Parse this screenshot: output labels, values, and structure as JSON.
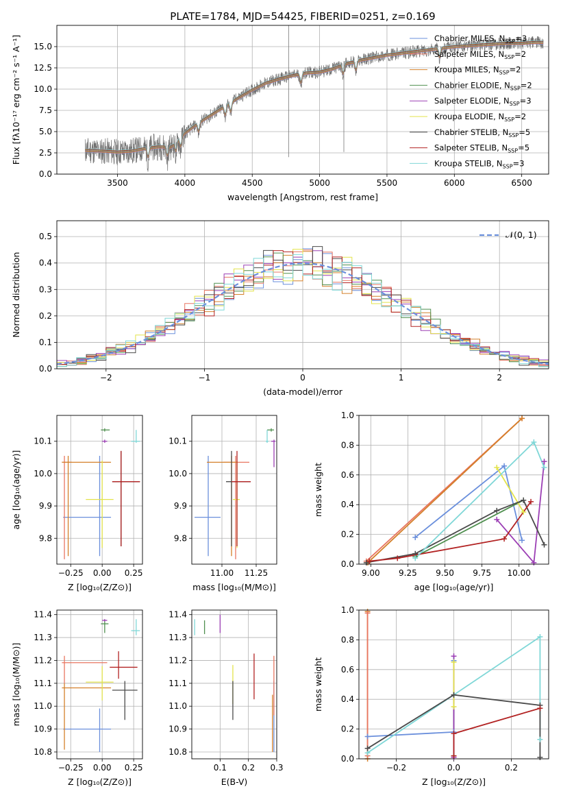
{
  "chart_data": [
    {
      "id": "spectrum",
      "type": "line",
      "title": "PLATE=1784, MJD=54425, FIBERID=0251, z=0.169",
      "xlabel": "wavelength [Angstrom, rest frame]",
      "ylabel": "Flux [fλ10⁻¹⁷ erg cm⁻² s⁻¹ A⁻¹]",
      "xlim": [
        3050,
        6700
      ],
      "ylim": [
        0,
        17.5
      ],
      "xticks": [
        3500,
        4000,
        4500,
        5000,
        5500,
        6000,
        6500
      ],
      "yticks": [
        0.0,
        2.5,
        5.0,
        7.5,
        10.0,
        12.5,
        15.0
      ],
      "data_x_range": [
        3260,
        6660
      ],
      "continuum": {
        "x": [
          3260,
          3400,
          3500,
          3600,
          3700,
          3800,
          3900,
          4000,
          4100,
          4200,
          4300,
          4400,
          4500,
          4600,
          4700,
          4800,
          4900,
          5000,
          5100,
          5200,
          5300,
          5400,
          5500,
          5600,
          5700,
          5800,
          5900,
          6000,
          6100,
          6200,
          6300,
          6400,
          6500,
          6600,
          6660
        ],
        "y": [
          2.8,
          2.7,
          2.6,
          2.7,
          3.0,
          3.2,
          3.2,
          4.8,
          6.0,
          7.0,
          8.0,
          9.0,
          9.9,
          10.7,
          11.2,
          11.6,
          11.9,
          12.0,
          12.4,
          13.0,
          13.4,
          13.7,
          14.0,
          14.2,
          14.4,
          14.6,
          14.8,
          15.0,
          15.1,
          15.2,
          15.3,
          15.4,
          15.4,
          15.5,
          15.5
        ]
      },
      "legend_position": "upper-right",
      "legend": [
        {
          "label": "Chabrier MILES, N",
          "sub": "SSP",
          "suffix": "=3",
          "color": "#6a8fdc"
        },
        {
          "label": "Salpeter MILES, N",
          "sub": "SSP",
          "suffix": "=2",
          "color": "#e87560"
        },
        {
          "label": "Kroupa MILES, N",
          "sub": "SSP",
          "suffix": "=2",
          "color": "#d4802a"
        },
        {
          "label": "Chabrier ELODIE, N",
          "sub": "SSP",
          "suffix": "=2",
          "color": "#4f8f4f"
        },
        {
          "label": "Salpeter ELODIE, N",
          "sub": "SSP",
          "suffix": "=3",
          "color": "#9b3eb4"
        },
        {
          "label": "Kroupa ELODIE, N",
          "sub": "SSP",
          "suffix": "=2",
          "color": "#e3e34a"
        },
        {
          "label": "Chabrier STELIB, N",
          "sub": "SSP",
          "suffix": "=5",
          "color": "#4a4a4a"
        },
        {
          "label": "Salpeter STELIB, N",
          "sub": "SSP",
          "suffix": "=5",
          "color": "#b22222"
        },
        {
          "label": "Kroupa STELIB, N",
          "sub": "SSP",
          "suffix": "=3",
          "color": "#7fd7d7"
        }
      ]
    },
    {
      "id": "residuals",
      "type": "histogram",
      "xlabel": "(data-model)/error",
      "ylabel": "Normed distribution",
      "xlim": [
        -2.5,
        2.5
      ],
      "ylim": [
        0,
        0.56
      ],
      "xticks": [
        -2,
        -1,
        0,
        1,
        2
      ],
      "yticks": [
        0.0,
        0.1,
        0.2,
        0.3,
        0.4,
        0.5
      ],
      "bin_width": 0.1,
      "grid": true,
      "legend_position": "upper-right",
      "legend": [
        {
          "label": "𝒩(0, 1)",
          "color": "#6a8fdc",
          "style": "dashed"
        }
      ],
      "series": [
        {
          "name": "Chabrier MILES",
          "color": "#6a8fdc",
          "seed": 1
        },
        {
          "name": "Salpeter MILES",
          "color": "#e87560",
          "seed": 2
        },
        {
          "name": "Kroupa MILES",
          "color": "#d4802a",
          "seed": 3
        },
        {
          "name": "Chabrier ELODIE",
          "color": "#4f8f4f",
          "seed": 4
        },
        {
          "name": "Salpeter ELODIE",
          "color": "#9b3eb4",
          "seed": 5
        },
        {
          "name": "Kroupa ELODIE",
          "color": "#e3e34a",
          "seed": 6
        },
        {
          "name": "Chabrier STELIB",
          "color": "#4a4a4a",
          "seed": 7
        },
        {
          "name": "Salpeter STELIB",
          "color": "#b22222",
          "seed": 8
        },
        {
          "name": "Kroupa STELIB",
          "color": "#7fd7d7",
          "seed": 9
        }
      ]
    },
    {
      "id": "age-vs-z",
      "type": "errorbar",
      "xlabel": "Z [log₁₀(Z/Z⊙)]",
      "ylabel": "age  [log₁₀(age/yr)]",
      "xlim": [
        -0.36,
        0.32
      ],
      "ylim": [
        9.72,
        10.18
      ],
      "xticks": [
        -0.25,
        0.0,
        0.25
      ],
      "yticks": [
        9.8,
        9.9,
        10.0,
        10.1
      ],
      "points": [
        {
          "color": "#6a8fdc",
          "x": -0.02,
          "y": 9.865,
          "xerr": [
            0.29,
            0.09
          ],
          "yerr": [
            0.12,
            0.19
          ]
        },
        {
          "color": "#e87560",
          "x": -0.3,
          "y": 10.035,
          "xerr": [
            0.02,
            0.06
          ],
          "yerr": [
            0.3,
            0.02
          ]
        },
        {
          "color": "#d4802a",
          "x": -0.27,
          "y": 10.035,
          "xerr": [
            0.05,
            0.34
          ],
          "yerr": [
            0.29,
            0.02
          ]
        },
        {
          "color": "#4f8f4f",
          "x": 0.02,
          "y": 10.135,
          "xerr": [
            0.03,
            0.04
          ],
          "yerr": [
            0.005,
            0.005
          ]
        },
        {
          "color": "#9b3eb4",
          "x": 0.02,
          "y": 10.1,
          "xerr": [
            0.02,
            0.02
          ],
          "yerr": [
            0.005,
            0.005
          ]
        },
        {
          "color": "#e3e34a",
          "x": 0.0,
          "y": 9.92,
          "xerr": [
            0.13,
            0.09
          ],
          "yerr": [
            0.15,
            0.12
          ]
        },
        {
          "color": "#4a4a4a",
          "x": 0.15,
          "y": 9.975,
          "xerr": [
            0.07,
            0.15
          ],
          "yerr": [
            0.2,
            0.095
          ]
        },
        {
          "color": "#b22222",
          "x": 0.15,
          "y": 9.975,
          "xerr": [
            0.07,
            0.15
          ],
          "yerr": [
            0.2,
            0.095
          ]
        },
        {
          "color": "#7fd7d7",
          "x": 0.27,
          "y": 10.1,
          "xerr": [
            0.04,
            0.03
          ],
          "yerr": [
            0.005,
            0.035
          ]
        }
      ]
    },
    {
      "id": "age-vs-mass",
      "type": "errorbar",
      "xlabel": "mass [log₁₀(M/M⊙)]",
      "ylabel": "",
      "xlim": [
        10.78,
        11.4
      ],
      "ylim": [
        9.72,
        10.18
      ],
      "xticks": [
        11.0,
        11.25
      ],
      "yticks": [
        9.8,
        9.9,
        10.0,
        10.1
      ],
      "points": [
        {
          "color": "#6a8fdc",
          "x": 10.9,
          "y": 9.865,
          "xerr": [
            0.1,
            0.09
          ],
          "yerr": [
            0.12,
            0.19
          ]
        },
        {
          "color": "#e87560",
          "x": 11.1,
          "y": 10.035,
          "xerr": [
            0.09,
            0.1
          ],
          "yerr": [
            0.3,
            0.02
          ]
        },
        {
          "color": "#d4802a",
          "x": 11.07,
          "y": 10.035,
          "xerr": [
            0.18,
            0.04
          ],
          "yerr": [
            0.29,
            0.02
          ]
        },
        {
          "color": "#4f8f4f",
          "x": 11.36,
          "y": 10.135,
          "xerr": [
            0.03,
            0.02
          ],
          "yerr": [
            0.005,
            0.005
          ]
        },
        {
          "color": "#9b3eb4",
          "x": 11.38,
          "y": 10.1,
          "xerr": [
            0.02,
            0.01
          ],
          "yerr": [
            0.08,
            0.005
          ]
        },
        {
          "color": "#e3e34a",
          "x": 11.11,
          "y": 9.92,
          "xerr": [
            0.03,
            0.02
          ],
          "yerr": [
            0.15,
            0.12
          ]
        },
        {
          "color": "#4a4a4a",
          "x": 11.07,
          "y": 9.975,
          "xerr": [
            0.04,
            0.14
          ],
          "yerr": [
            0.2,
            0.095
          ]
        },
        {
          "color": "#b22222",
          "x": 11.11,
          "y": 9.975,
          "xerr": [
            0.04,
            0.1
          ],
          "yerr": [
            0.2,
            0.095
          ]
        },
        {
          "color": "#7fd7d7",
          "x": 11.33,
          "y": 10.1,
          "xerr": [
            0.01,
            0.01
          ],
          "yerr": [
            0.005,
            0.035
          ]
        }
      ]
    },
    {
      "id": "weight-vs-age",
      "type": "line",
      "xlabel": "age  [log₁₀(age/yr)]",
      "ylabel": "mass weight",
      "xlim": [
        8.92,
        10.2
      ],
      "ylim": [
        0,
        1.0
      ],
      "xticks": [
        9.0,
        9.25,
        9.5,
        9.75,
        10.0
      ],
      "yticks": [
        0.0,
        0.2,
        0.4,
        0.6,
        0.8,
        1.0
      ],
      "grid": true,
      "series": [
        {
          "color": "#e87560",
          "x": [
            8.97,
            10.02
          ],
          "y": [
            0.02,
            0.98
          ]
        },
        {
          "color": "#d4802a",
          "x": [
            8.98,
            10.02
          ],
          "y": [
            0.01,
            0.98
          ]
        },
        {
          "color": "#6a8fdc",
          "x": [
            9.3,
            9.9,
            10.02
          ],
          "y": [
            0.18,
            0.66,
            0.16
          ]
        },
        {
          "color": "#4f8f4f",
          "x": [
            9.3,
            10.03
          ],
          "y": [
            0.05,
            0.43
          ]
        },
        {
          "color": "#9b3eb4",
          "x": [
            9.85,
            10.1,
            10.17
          ],
          "y": [
            0.3,
            0.01,
            0.69
          ]
        },
        {
          "color": "#e3e34a",
          "x": [
            9.85,
            10.03
          ],
          "y": [
            0.65,
            0.35
          ]
        },
        {
          "color": "#4a4a4a",
          "x": [
            8.97,
            9.3,
            9.85,
            10.03,
            10.17
          ],
          "y": [
            0.01,
            0.07,
            0.36,
            0.43,
            0.13
          ]
        },
        {
          "color": "#b22222",
          "x": [
            8.99,
            9.18,
            9.9,
            10.08
          ],
          "y": [
            0.02,
            0.04,
            0.17,
            0.42
          ]
        },
        {
          "color": "#7fd7d7",
          "x": [
            9.3,
            10.1,
            10.17
          ],
          "y": [
            0.04,
            0.82,
            0.65
          ]
        }
      ]
    },
    {
      "id": "mass-vs-z",
      "type": "errorbar",
      "xlabel": "Z [log₁₀(Z/Z⊙)]",
      "ylabel": "mass [log₁₀(M/M⊙)]",
      "xlim": [
        -0.36,
        0.32
      ],
      "ylim": [
        10.77,
        11.42
      ],
      "xticks": [
        -0.25,
        0.0,
        0.25
      ],
      "yticks": [
        10.8,
        10.9,
        11.0,
        11.1,
        11.2,
        11.3,
        11.4
      ],
      "points": [
        {
          "color": "#6a8fdc",
          "x": -0.02,
          "y": 10.9,
          "xerr": [
            0.29,
            0.09
          ],
          "yerr": [
            0.1,
            0.09
          ]
        },
        {
          "color": "#e87560",
          "x": -0.3,
          "y": 11.19,
          "xerr": [
            0.02,
            0.34
          ],
          "yerr": [
            0.09,
            0.03
          ]
        },
        {
          "color": "#d4802a",
          "x": -0.3,
          "y": 11.08,
          "xerr": [
            0.02,
            0.37
          ],
          "yerr": [
            0.27,
            0.02
          ]
        },
        {
          "color": "#4f8f4f",
          "x": 0.02,
          "y": 11.36,
          "xerr": [
            0.03,
            0.03
          ],
          "yerr": [
            0.04,
            0.02
          ]
        },
        {
          "color": "#9b3eb4",
          "x": 0.02,
          "y": 11.375,
          "xerr": [
            0.02,
            0.02
          ],
          "yerr": [
            0.005,
            0.005
          ]
        },
        {
          "color": "#e3e34a",
          "x": 0.0,
          "y": 11.105,
          "xerr": [
            0.13,
            0.09
          ],
          "yerr": [
            0.08,
            0.07
          ]
        },
        {
          "color": "#4a4a4a",
          "x": 0.18,
          "y": 11.07,
          "xerr": [
            0.1,
            0.1
          ],
          "yerr": [
            0.13,
            0.04
          ]
        },
        {
          "color": "#b22222",
          "x": 0.13,
          "y": 11.17,
          "xerr": [
            0.07,
            0.15
          ],
          "yerr": [
            0.05,
            0.07
          ]
        },
        {
          "color": "#7fd7d7",
          "x": 0.27,
          "y": 11.33,
          "xerr": [
            0.04,
            0.03
          ],
          "yerr": [
            0.02,
            0.05
          ]
        }
      ]
    },
    {
      "id": "mass-vs-ebv",
      "type": "errorbar",
      "xlabel": "E(B-V)",
      "ylabel": "",
      "xlim": [
        0.0,
        0.3
      ],
      "ylim": [
        10.77,
        11.42
      ],
      "xticks": [
        0.1,
        0.2,
        0.3
      ],
      "yticks": [
        10.8,
        10.9,
        11.0,
        11.1,
        11.2,
        11.3,
        11.4
      ],
      "points": [
        {
          "color": "#6a8fdc",
          "x": 0.29,
          "y": 10.95,
          "xerr": [
            0,
            0
          ],
          "yerr": [
            0.15,
            0.16
          ]
        },
        {
          "color": "#e87560",
          "x": 0.29,
          "y": 11.1,
          "xerr": [
            0,
            0
          ],
          "yerr": [
            0.14,
            0.12
          ]
        },
        {
          "color": "#d4802a",
          "x": 0.285,
          "y": 10.95,
          "xerr": [
            0,
            0
          ],
          "yerr": [
            0.15,
            0.1
          ]
        },
        {
          "color": "#4f8f4f",
          "x": 0.045,
          "y": 11.345,
          "xerr": [
            0,
            0
          ],
          "yerr": [
            0.03,
            0.03
          ]
        },
        {
          "color": "#9b3eb4",
          "x": 0.1,
          "y": 11.36,
          "xerr": [
            0,
            0
          ],
          "yerr": [
            0.04,
            0.04
          ]
        },
        {
          "color": "#e3e34a",
          "x": 0.145,
          "y": 11.1,
          "xerr": [
            0,
            0
          ],
          "yerr": [
            0.09,
            0.08
          ]
        },
        {
          "color": "#4a4a4a",
          "x": 0.145,
          "y": 11.03,
          "xerr": [
            0,
            0
          ],
          "yerr": [
            0.09,
            0.08
          ]
        },
        {
          "color": "#b22222",
          "x": 0.22,
          "y": 11.13,
          "xerr": [
            0,
            0
          ],
          "yerr": [
            0.1,
            0.1
          ]
        },
        {
          "color": "#7fd7d7",
          "x": 0.01,
          "y": 11.345,
          "xerr": [
            0,
            0
          ],
          "yerr": [
            0.035,
            0.035
          ]
        }
      ]
    },
    {
      "id": "weight-vs-z",
      "type": "line",
      "xlabel": "Z [log₁₀(Z/Z⊙)]",
      "ylabel": "mass weight",
      "xlim": [
        -0.33,
        0.33
      ],
      "ylim": [
        0,
        1.0
      ],
      "xticks": [
        -0.2,
        0.0,
        0.2
      ],
      "yticks": [
        0.0,
        0.2,
        0.4,
        0.6,
        0.8,
        1.0
      ],
      "grid": true,
      "series": [
        {
          "color": "#d4802a",
          "x": [
            -0.3,
            -0.3
          ],
          "y": [
            0.0,
            0.99
          ]
        },
        {
          "color": "#e87560",
          "x": [
            -0.3,
            -0.3
          ],
          "y": [
            0.02,
            0.98
          ]
        },
        {
          "color": "#6a8fdc",
          "x": [
            -0.3,
            0.0,
            0.0
          ],
          "y": [
            0.15,
            0.18,
            0.66
          ]
        },
        {
          "color": "#4f8f4f",
          "x": [
            0.0,
            0.0
          ],
          "y": [
            0.02,
            0.43
          ]
        },
        {
          "color": "#9b3eb4",
          "x": [
            0.0,
            0.0
          ],
          "y": [
            0.01,
            0.69
          ]
        },
        {
          "color": "#e3e34a",
          "x": [
            0.0,
            0.0
          ],
          "y": [
            0.35,
            0.65
          ]
        },
        {
          "color": "#7fd7d7",
          "x": [
            -0.3,
            0.3,
            0.3
          ],
          "y": [
            0.04,
            0.82,
            0.13
          ]
        },
        {
          "color": "#4a4a4a",
          "x": [
            -0.3,
            0.0,
            0.3,
            0.3
          ],
          "y": [
            0.07,
            0.43,
            0.36,
            0.01
          ]
        },
        {
          "color": "#b22222",
          "x": [
            0.0,
            0.0,
            0.3
          ],
          "y": [
            0.02,
            0.17,
            0.34
          ]
        }
      ]
    }
  ]
}
